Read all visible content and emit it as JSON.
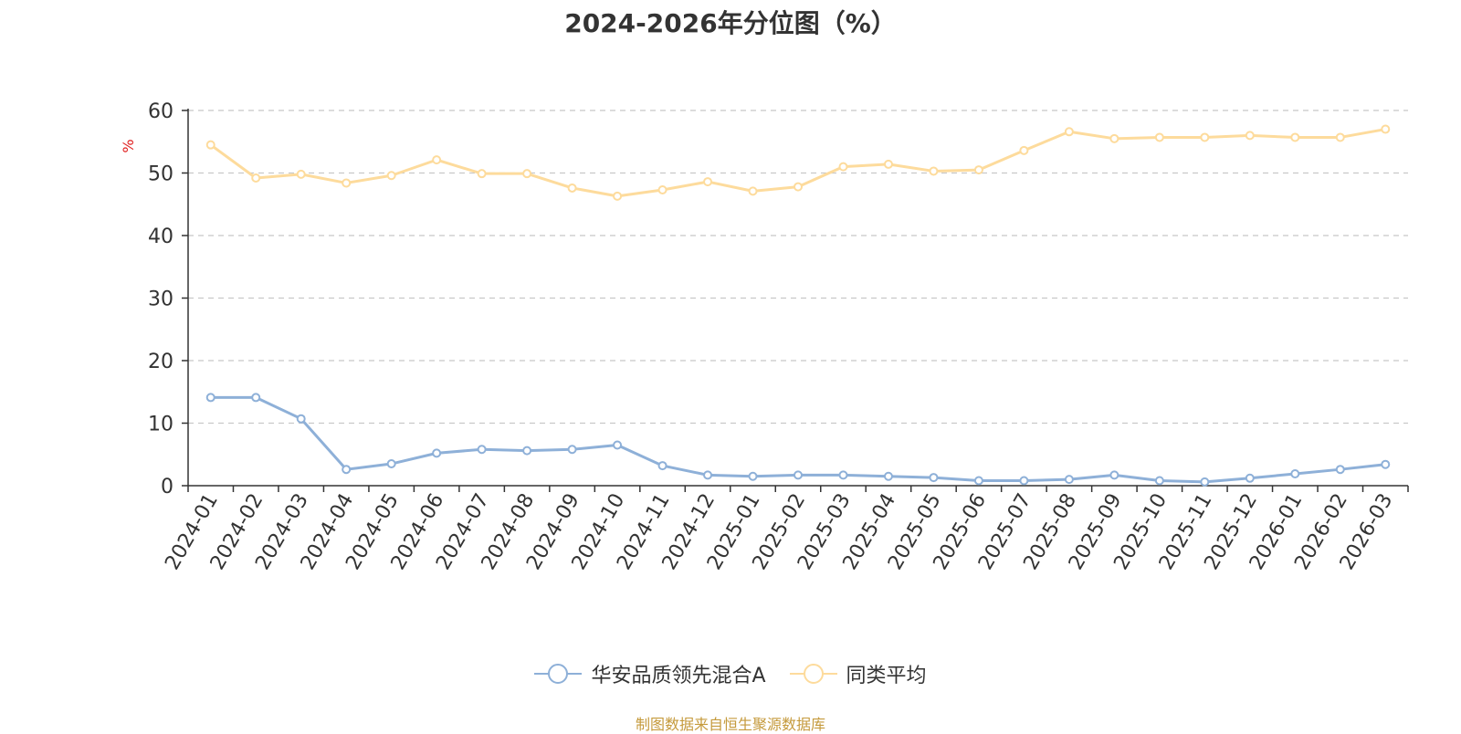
{
  "chart_data": {
    "type": "line",
    "title": "2024-2026年分位图（%）",
    "ylabel": "%",
    "xlabel": "",
    "ylim": [
      0,
      60
    ],
    "yticks": [
      0,
      10,
      20,
      30,
      40,
      50,
      60
    ],
    "grid": "horizontal dashed",
    "legend_position": "bottom",
    "categories": [
      "2024-01",
      "2024-02",
      "2024-03",
      "2024-04",
      "2024-05",
      "2024-06",
      "2024-07",
      "2024-08",
      "2024-09",
      "2024-10",
      "2024-11",
      "2024-12",
      "2025-01",
      "2025-02",
      "2025-03",
      "2025-04",
      "2025-05",
      "2025-06",
      "2025-07",
      "2025-08",
      "2025-09",
      "2025-10",
      "2025-11",
      "2025-12",
      "2026-01",
      "2026-02",
      "2026-03"
    ],
    "series": [
      {
        "name": "华安品质领先混合A",
        "color": "#8eb0d8",
        "values": [
          14.1,
          14.1,
          10.7,
          2.6,
          3.5,
          5.2,
          5.8,
          5.6,
          5.8,
          6.5,
          3.2,
          1.7,
          1.5,
          1.7,
          1.7,
          1.5,
          1.3,
          0.8,
          0.8,
          1.0,
          1.7,
          0.8,
          0.6,
          1.2,
          1.9,
          2.6,
          3.4
        ]
      },
      {
        "name": "同类平均",
        "color": "#fddb9c",
        "values": [
          54.5,
          49.2,
          49.8,
          48.4,
          49.6,
          52.1,
          49.9,
          49.9,
          47.6,
          46.3,
          47.3,
          48.6,
          47.1,
          47.8,
          51.0,
          51.4,
          50.3,
          50.5,
          53.6,
          56.6,
          55.5,
          55.7,
          55.7,
          56.0,
          55.7,
          55.7,
          57.0
        ]
      }
    ]
  },
  "source_note": "制图数据来自恒生聚源数据库"
}
